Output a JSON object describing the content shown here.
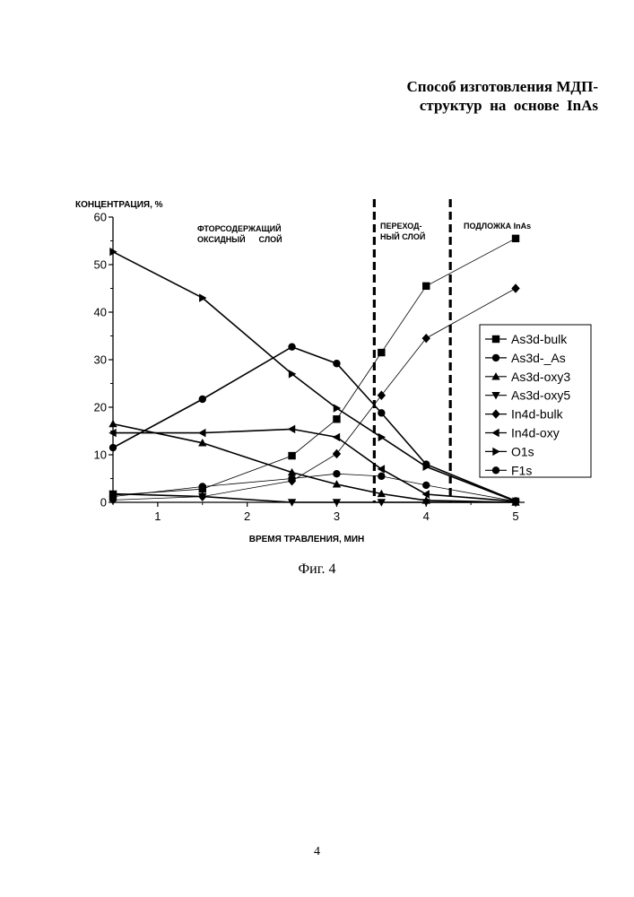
{
  "document": {
    "title_line1": "Способ изготовления МДП-",
    "title_line2": "структур  на  основе  InAs",
    "figure_caption": "Фиг. 4",
    "page_number": "4"
  },
  "chart_data": {
    "type": "line",
    "ylabel": "КОНЦЕНТРАЦИЯ, %",
    "xlabel": "ВРЕМЯ ТРАВЛЕНИЯ, МИН",
    "xlim": [
      0.5,
      5.1
    ],
    "ylim": [
      0,
      60
    ],
    "x_ticks": [
      1,
      2,
      3,
      4,
      5
    ],
    "y_ticks": [
      0,
      10,
      20,
      30,
      40,
      50,
      60
    ],
    "grid": false,
    "legend_position": "right",
    "region_labels": [
      {
        "line1": "ФТОРСОДЕРЖАЩИЙ",
        "line2": "ОКСИДНЫЙ      СЛОЙ"
      },
      {
        "line1": "ПЕРЕХОД-",
        "line2": "НЫЙ СЛОЙ"
      },
      {
        "line1": "ПОДЛОЖКА InAs",
        "line2": ""
      }
    ],
    "boundaries_x": [
      3.42,
      4.27
    ],
    "x": [
      0.5,
      1.5,
      2.5,
      3.0,
      3.5,
      4.0,
      5.0
    ],
    "series": [
      {
        "name": "As3d-bulk",
        "marker": "square",
        "thick": false,
        "values": [
          1.5,
          2.8,
          9.8,
          17.5,
          31.5,
          45.5,
          55.5
        ]
      },
      {
        "name": "As3d-_As",
        "marker": "circle",
        "thick": true,
        "values": [
          11.5,
          21.7,
          32.7,
          29.2,
          18.8,
          8.0,
          0.3
        ]
      },
      {
        "name": "As3d-oxy3",
        "marker": "triangle-up",
        "thick": true,
        "values": [
          16.5,
          12.5,
          6.3,
          3.8,
          1.8,
          0.4,
          0.0
        ]
      },
      {
        "name": "As3d-oxy5",
        "marker": "triangle-down",
        "thick": true,
        "values": [
          1.8,
          1.2,
          0.0,
          0.0,
          0.0,
          0.0,
          0.0
        ]
      },
      {
        "name": "In4d-bulk",
        "marker": "diamond",
        "thick": false,
        "values": [
          0.5,
          1.2,
          4.5,
          10.2,
          22.5,
          34.5,
          45.0
        ]
      },
      {
        "name": "In4d-oxy",
        "marker": "triangle-left",
        "thick": true,
        "values": [
          14.6,
          14.6,
          15.4,
          13.7,
          7.0,
          1.7,
          0.2
        ]
      },
      {
        "name": "O1s",
        "marker": "triangle-right",
        "thick": true,
        "values": [
          52.7,
          43.0,
          27.0,
          19.8,
          13.7,
          7.5,
          0.2
        ]
      },
      {
        "name": "F1s",
        "marker": "circle",
        "thick": false,
        "values": [
          1.2,
          3.3,
          5.0,
          6.0,
          5.5,
          3.6,
          0.2
        ]
      }
    ]
  }
}
